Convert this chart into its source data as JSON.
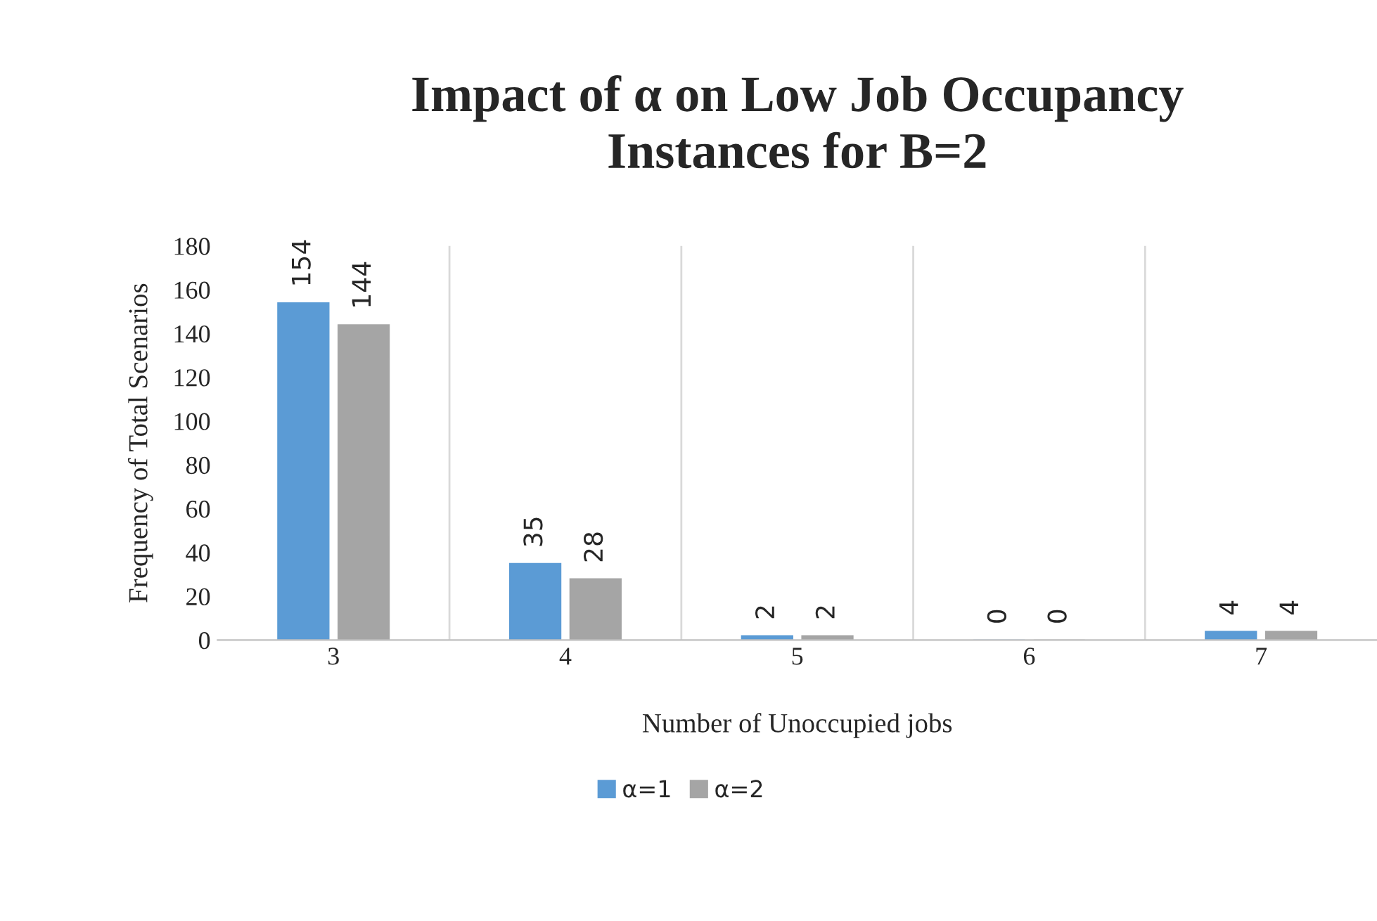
{
  "chart_data": {
    "type": "bar",
    "title": "Impact of α on Low Job Occupancy\nInstances for B=2",
    "xlabel": "Number of Unoccupied jobs",
    "ylabel": "Frequency of Total Scenarios",
    "categories": [
      "3",
      "4",
      "5",
      "6",
      "7"
    ],
    "series": [
      {
        "name": "α=1",
        "color": "#5b9bd5",
        "values": [
          154,
          35,
          2,
          0,
          4
        ]
      },
      {
        "name": "α=2",
        "color": "#a5a5a5",
        "values": [
          144,
          28,
          2,
          0,
          4
        ]
      }
    ],
    "ylim": [
      0,
      180
    ],
    "yticks": [
      0,
      20,
      40,
      60,
      80,
      100,
      120,
      140,
      160,
      180
    ],
    "grid": "x",
    "legend": "bottom",
    "data_labels": true
  }
}
